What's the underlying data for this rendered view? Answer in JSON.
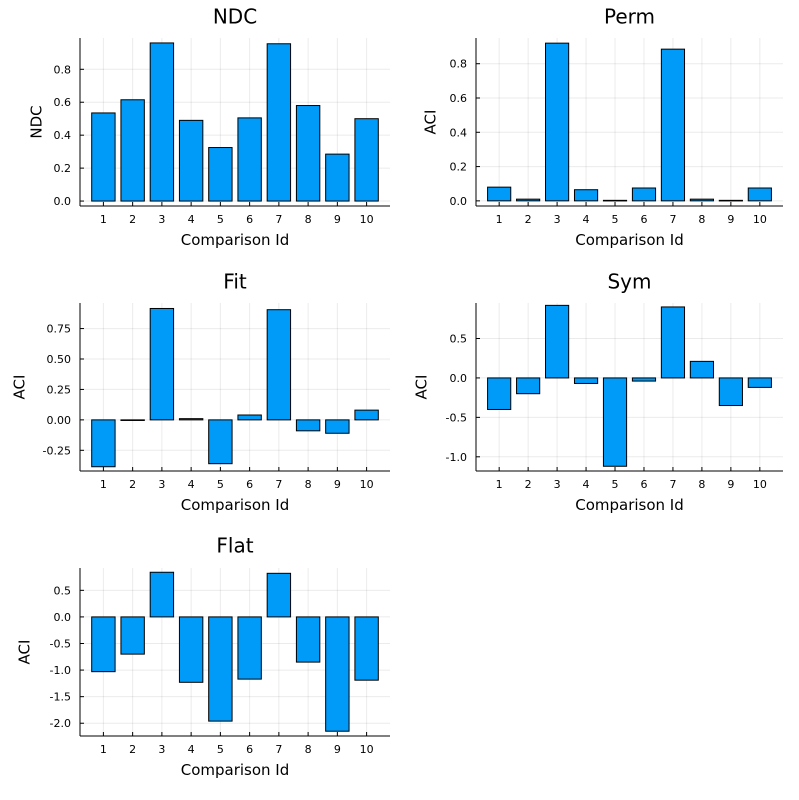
{
  "chart_data": [
    {
      "type": "bar",
      "title": "NDC",
      "xlabel": "Comparison Id",
      "ylabel": "NDC",
      "categories": [
        "1",
        "2",
        "3",
        "4",
        "5",
        "6",
        "7",
        "8",
        "9",
        "10"
      ],
      "values": [
        0.535,
        0.615,
        0.96,
        0.49,
        0.325,
        0.505,
        0.955,
        0.58,
        0.285,
        0.5
      ],
      "ylim": [
        -0.03,
        0.99
      ],
      "yticks": [
        0.0,
        0.2,
        0.4,
        0.6,
        0.8
      ],
      "ytick_labels": [
        "0.0",
        "0.2",
        "0.4",
        "0.6",
        "0.8"
      ],
      "grid": true
    },
    {
      "type": "bar",
      "title": "Perm",
      "xlabel": "Comparison Id",
      "ylabel": "ACI",
      "categories": [
        "1",
        "2",
        "3",
        "4",
        "5",
        "6",
        "7",
        "8",
        "9",
        "10"
      ],
      "values": [
        0.08,
        0.01,
        0.92,
        0.065,
        0.003,
        0.075,
        0.885,
        0.01,
        0.003,
        0.075
      ],
      "ylim": [
        -0.03,
        0.95
      ],
      "yticks": [
        0.0,
        0.2,
        0.4,
        0.6,
        0.8
      ],
      "ytick_labels": [
        "0.0",
        "0.2",
        "0.4",
        "0.6",
        "0.8"
      ],
      "grid": true
    },
    {
      "type": "bar",
      "title": "Fit",
      "xlabel": "Comparison Id",
      "ylabel": "ACI",
      "categories": [
        "1",
        "2",
        "3",
        "4",
        "5",
        "6",
        "7",
        "8",
        "9",
        "10"
      ],
      "values": [
        -0.385,
        0.0,
        0.915,
        0.01,
        -0.36,
        0.04,
        0.905,
        -0.09,
        -0.11,
        0.08
      ],
      "ylim": [
        -0.42,
        0.96
      ],
      "yticks": [
        -0.25,
        0.0,
        0.25,
        0.5,
        0.75
      ],
      "ytick_labels": [
        "-0.25",
        "0.00",
        "0.25",
        "0.50",
        "0.75"
      ],
      "grid": true
    },
    {
      "type": "bar",
      "title": "Sym",
      "xlabel": "Comparison Id",
      "ylabel": "ACI",
      "categories": [
        "1",
        "2",
        "3",
        "4",
        "5",
        "6",
        "7",
        "8",
        "9",
        "10"
      ],
      "values": [
        -0.4,
        -0.2,
        0.92,
        -0.07,
        -1.12,
        -0.04,
        0.9,
        0.21,
        -0.35,
        -0.12
      ],
      "ylim": [
        -1.18,
        0.95
      ],
      "yticks": [
        -1.0,
        -0.5,
        0.0,
        0.5
      ],
      "ytick_labels": [
        "-1.0",
        "-0.5",
        "0.0",
        "0.5"
      ],
      "grid": true
    },
    {
      "type": "bar",
      "title": "Flat",
      "xlabel": "Comparison Id",
      "ylabel": "ACI",
      "categories": [
        "1",
        "2",
        "3",
        "4",
        "5",
        "6",
        "7",
        "8",
        "9",
        "10"
      ],
      "values": [
        -1.03,
        -0.7,
        0.84,
        -1.23,
        -1.96,
        -1.17,
        0.82,
        -0.85,
        -2.15,
        -1.19
      ],
      "ylim": [
        -2.24,
        0.92
      ],
      "yticks": [
        -2.0,
        -1.5,
        -1.0,
        -0.5,
        0.0,
        0.5
      ],
      "ytick_labels": [
        "-2.0",
        "-1.5",
        "-1.0",
        "-0.5",
        "0.0",
        "0.5"
      ],
      "grid": true
    }
  ],
  "colors": {
    "bar_fill": "#009af9",
    "bar_stroke": "#000000"
  }
}
